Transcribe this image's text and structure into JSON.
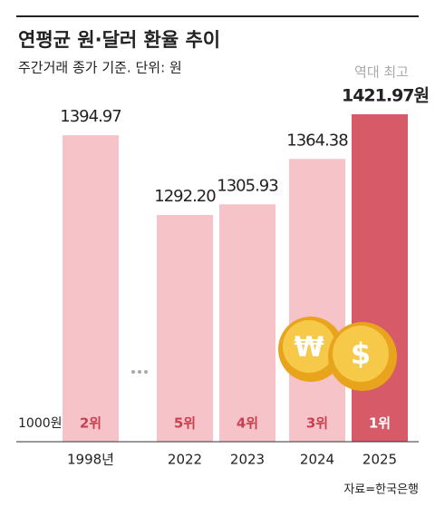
{
  "chart_data": {
    "type": "bar",
    "title": "연평균 원·달러 환율 추이",
    "subtitle": "주간거래 종가 기준. 단위: 원",
    "categories": [
      "1998년",
      "2022",
      "2023",
      "2024",
      "2025"
    ],
    "values": [
      1394.97,
      1292.2,
      1305.93,
      1364.38,
      1421.97
    ],
    "value_labels": [
      "1394.97",
      "1292.20",
      "1305.93",
      "1364.38",
      "1421.97원"
    ],
    "ranks": [
      "2위",
      "5위",
      "4위",
      "3위",
      "1위"
    ],
    "colors": [
      "#f5c3c8",
      "#f5c3c8",
      "#f5c3c8",
      "#f5c3c8",
      "#d65a68"
    ],
    "annotation": "역대 최고",
    "ylim": [
      1000,
      1450
    ],
    "yticks": [
      {
        "value": 1000,
        "label": "1000원"
      }
    ],
    "source": "자료=한국은행"
  }
}
